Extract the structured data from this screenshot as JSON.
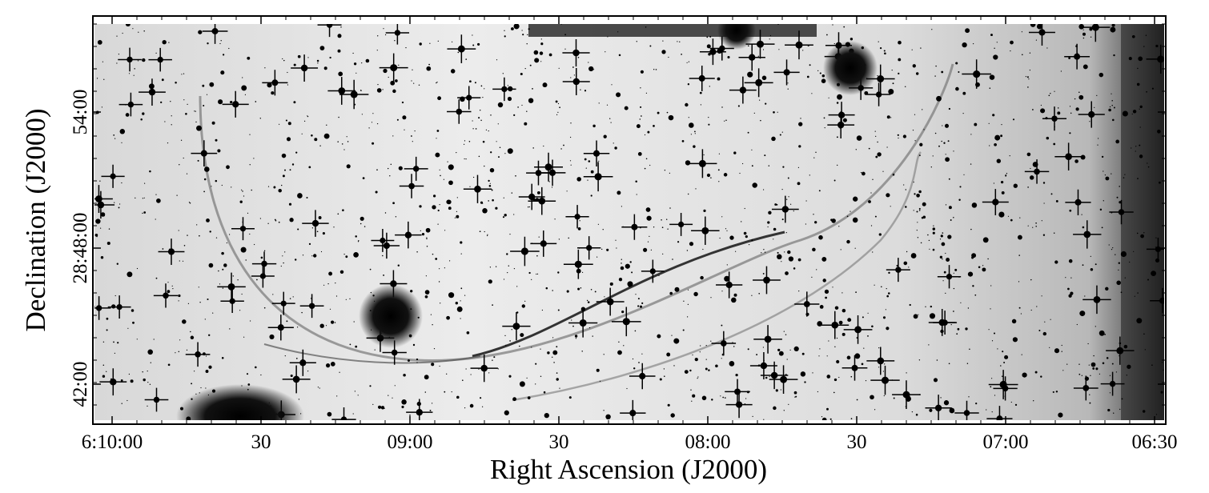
{
  "x_axis": {
    "label": "Right Ascension (J2000)",
    "ticks": [
      "6:10:00",
      "30",
      "09:00",
      "30",
      "08:00",
      "30",
      "07:00",
      "06:30"
    ]
  },
  "y_axis": {
    "label": "Declination (J2000)",
    "ticks": [
      "54:00",
      "28:48:00",
      "42:00"
    ]
  }
}
